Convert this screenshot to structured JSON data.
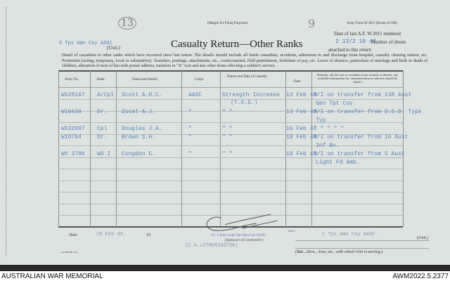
{
  "header": {
    "margin_note": "(Margin for Filing Purposes)",
    "form_no": "Army Form W.3011 (Books of 100)",
    "handwritten_13": "13",
    "handwritten_9": "9",
    "unit_typed": "G Tps Amn Coy AASC",
    "unit_label": "(Unit.)",
    "title": "Casualty Return—Other Ranks",
    "date_last_label": "Date of last A.F. W.3011 rendered",
    "date_last_value": "2 13/2 19 43",
    "number_sheets_label": "Number of sheets",
    "attached_label": "attached to this return",
    "instructions": "Detail of casualties to other ranks which have occurred since last return. The details should include all battle casualties, accidents, admission to and discharge from hospital, casualty clearing station, etc. Promotion (acting, temporary, local or substantive). Transfers, postings, attachments, etc., courts-martial, field punishment, forfeiture of pay, etc. Leave of absence, particulars of marriage and birth or death of children, alteration of next of kin with postal address, transfers to \"X\" List and any other items affecting a soldier's service."
  },
  "table": {
    "columns": [
      "Army No.",
      "Rank.",
      "Name and Initials.",
      "Corps.",
      "Nature and Date of Casualty.",
      "Date.",
      "Remarks. (In the case of casualties from wounds or disease, any available information for communication to relatives should be stated.)"
    ],
    "rows": [
      {
        "army_no": "WX28167",
        "rank": "A/Cpl",
        "name": "Scott A.R.C.",
        "corps": "AASC",
        "nature": "Strength Increase",
        "nature2": "(T.O.S.)",
        "date": "13 Feb 43",
        "remarks": "M/I on transfer from 138 Aust",
        "remarks2": "Gen Tpt Coy."
      },
      {
        "army_no": "W16638",
        "rank": "Dr.",
        "name": "Zucal A.J.",
        "corps": "\"",
        "nature": "\"        \"",
        "nature2": "",
        "date": "13 Feb 43",
        "remarks": "M/I on transfer from D.S.D. Type",
        "remarks2": "Typ"
      },
      {
        "army_no": "WX32697",
        "rank": "Cpl",
        "name": "Douglas J.A.",
        "corps": "\"",
        "nature": "\"        \"",
        "nature2": "",
        "date": "16 Feb 43",
        "remarks": "\"     \"     \"     \"     \"",
        "remarks2": ""
      },
      {
        "army_no": "W10764",
        "rank": "Dr.",
        "name": "Brown S.H.",
        "corps": "\"",
        "nature": "\"        \"",
        "nature2": "",
        "date": "19 Feb 43",
        "remarks": "M/I on transfer from 16 Aust",
        "remarks2": "Inf Bn."
      },
      {
        "army_no": "WX 3700",
        "rank": "WO I",
        "name": "Congdon       E.",
        "corps": "\"",
        "nature": "\"        \"",
        "nature2": "",
        "date": "19 Feb 43",
        "remarks": "M/I on transfer from 5 Aust",
        "remarks2": "Light Fd Amb."
      }
    ]
  },
  "footer": {
    "date_label": "Date",
    "date_value": "20 Feb 43.",
    "year_label": "19",
    "rank_stamp": "Major",
    "oc_stamp": "OC 1 Aust Corps Tps Amn Coy AASC",
    "signature_label": "(Signature of Commander.)",
    "name_typed": "(C.A.LOTHERINGTON)",
    "unit_value": "C Tps Amn Coy AASC.",
    "unit_label": "(Unit.)",
    "formation_label": "(Bde., Divn., Area, etc., with which Unit is serving.)",
    "print_code": "A.W. 900 Min. 5/42"
  },
  "caption": {
    "left": "AUSTRALIAN WAR MEMORIAL",
    "right": "AWM2022.5.2377"
  }
}
